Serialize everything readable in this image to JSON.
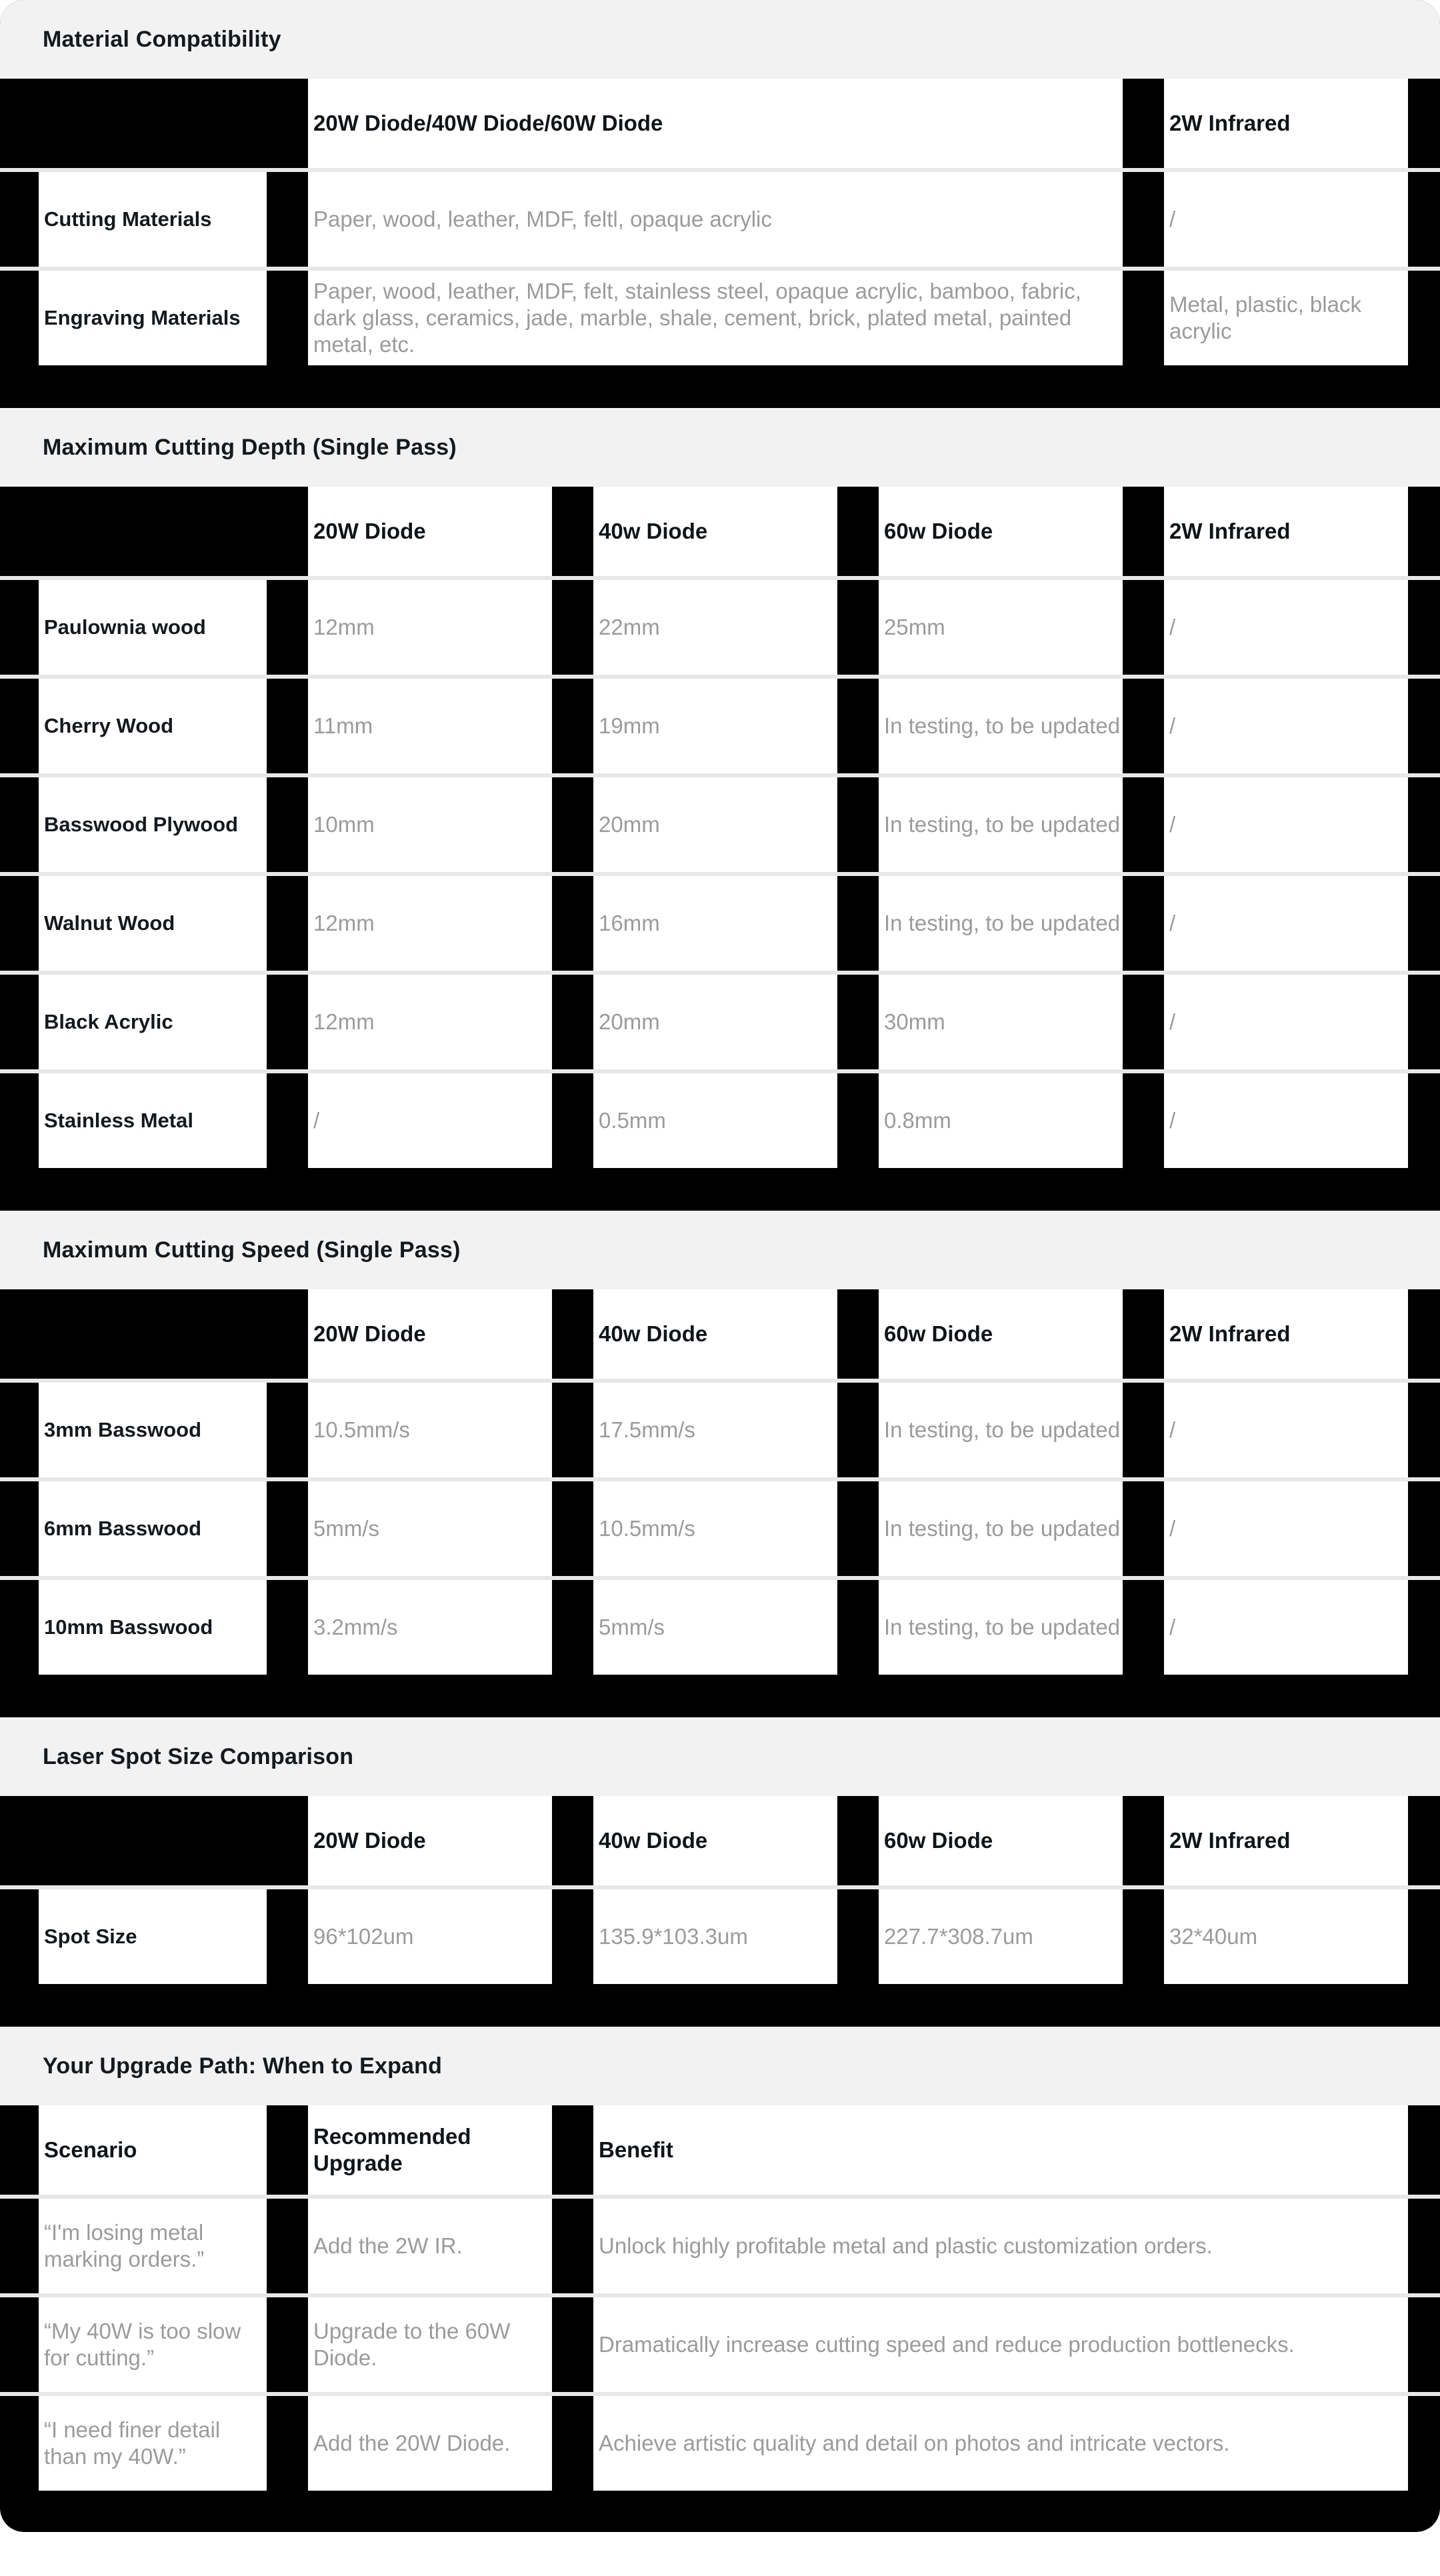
{
  "theme": {
    "card_background": "#000000",
    "section_band_background": "#f2f2f2",
    "cell_background": "#ffffff",
    "separator_color": "#e7e7e7",
    "heading_text_color": "#15191d",
    "value_text_color": "#9b9b9b"
  },
  "sections": [
    {
      "title": "Material Compatibility",
      "table": {
        "header": [
          "20W Diode/40W Diode/60W Diode",
          "2W Infrared"
        ],
        "rows": [
          {
            "label": "Cutting Materials",
            "values": [
              "Paper, wood, leather, MDF, feltl, opaque acrylic",
              "/"
            ]
          },
          {
            "label": "Engraving Materials",
            "values": [
              "Paper, wood, leather, MDF, felt, stainless steel, opaque acrylic, bamboo, fabric, dark glass, ceramics, jade, marble, shale, cement, brick, plated metal, painted metal, etc.",
              "Metal, plastic, black acrylic"
            ]
          }
        ]
      }
    },
    {
      "title": "Maximum Cutting Depth (Single Pass)",
      "table": {
        "header": [
          "20W Diode",
          "40w Diode",
          "60w Diode",
          "2W Infrared"
        ],
        "rows": [
          {
            "label": "Paulownia wood",
            "values": [
              "12mm",
              "22mm",
              "25mm",
              "/"
            ]
          },
          {
            "label": "Cherry Wood",
            "values": [
              "11mm",
              "19mm",
              "In testing, to be updated",
              "/"
            ]
          },
          {
            "label": "Basswood Plywood",
            "values": [
              "10mm",
              "20mm",
              "In testing, to be updated",
              "/"
            ]
          },
          {
            "label": "Walnut Wood",
            "values": [
              "12mm",
              "16mm",
              "In testing, to be updated",
              "/"
            ]
          },
          {
            "label": "Black Acrylic",
            "values": [
              "12mm",
              "20mm",
              "30mm",
              "/"
            ]
          },
          {
            "label": "Stainless Metal",
            "values": [
              "/",
              "0.5mm",
              "0.8mm",
              "/"
            ]
          }
        ]
      }
    },
    {
      "title": "Maximum Cutting Speed (Single Pass)",
      "table": {
        "header": [
          "20W Diode",
          "40w Diode",
          "60w Diode",
          "2W Infrared"
        ],
        "rows": [
          {
            "label": "3mm Basswood",
            "values": [
              "10.5mm/s",
              "17.5mm/s",
              "In testing, to be updated",
              "/"
            ]
          },
          {
            "label": "6mm Basswood",
            "values": [
              "5mm/s",
              "10.5mm/s",
              "In testing, to be updated",
              "/"
            ]
          },
          {
            "label": "10mm Basswood",
            "values": [
              "3.2mm/s",
              "5mm/s",
              "In testing, to be updated",
              "/"
            ]
          }
        ]
      }
    },
    {
      "title": "Laser Spot Size Comparison",
      "table": {
        "header": [
          "20W Diode",
          "40w Diode",
          "60w Diode",
          "2W Infrared"
        ],
        "rows": [
          {
            "label": "Spot Size",
            "values": [
              "96*102um",
              "135.9*103.3um",
              "227.7*308.7um",
              "32*40um"
            ]
          }
        ]
      }
    },
    {
      "title": "Your Upgrade Path: When to Expand",
      "table": {
        "header": [
          "Scenario",
          "Recommended Upgrade",
          "Benefit"
        ],
        "rows": [
          {
            "label": "“I'm losing metal marking orders.”",
            "values": [
              "Add the 2W IR.",
              "Unlock highly profitable metal and plastic customization orders."
            ]
          },
          {
            "label": "“My 40W is too slow for cutting.”",
            "values": [
              "Upgrade to the 60W Diode.",
              "Dramatically increase cutting speed and reduce production bottlenecks."
            ]
          },
          {
            "label": "“I need finer detail than my 40W.”",
            "values": [
              "Add the 20W Diode.",
              "Achieve artistic quality and detail on photos and intricate vectors."
            ]
          }
        ]
      }
    }
  ]
}
